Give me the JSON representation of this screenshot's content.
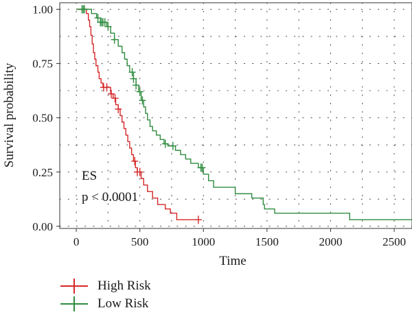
{
  "chart_data": {
    "type": "line",
    "xlabel": "Time",
    "ylabel": "Survival probability",
    "xlim": [
      -130,
      2640
    ],
    "ylim": [
      -0.01,
      1.03
    ],
    "xticks": [
      0,
      500,
      1000,
      1500,
      2000,
      2500
    ],
    "xtick_labels": [
      "0",
      "500",
      "1000",
      "1500",
      "2000",
      "2500"
    ],
    "yticks": [
      0,
      0.25,
      0.5,
      0.75,
      1.0
    ],
    "ytick_labels": [
      "0.00",
      "0.25",
      "0.50",
      "0.75",
      "1.00"
    ],
    "grid": "dotted",
    "annotations": [
      "ES",
      "p < 0.0001"
    ],
    "series": [
      {
        "name": "High Risk",
        "color": "#d62728",
        "steps": [
          [
            0,
            1.0
          ],
          [
            80,
            0.98
          ],
          [
            95,
            0.95
          ],
          [
            105,
            0.92
          ],
          [
            115,
            0.88
          ],
          [
            125,
            0.84
          ],
          [
            135,
            0.8
          ],
          [
            145,
            0.77
          ],
          [
            155,
            0.74
          ],
          [
            170,
            0.71
          ],
          [
            180,
            0.68
          ],
          [
            195,
            0.66
          ],
          [
            210,
            0.64
          ],
          [
            270,
            0.61
          ],
          [
            290,
            0.59
          ],
          [
            310,
            0.56
          ],
          [
            330,
            0.54
          ],
          [
            345,
            0.51
          ],
          [
            360,
            0.48
          ],
          [
            375,
            0.45
          ],
          [
            390,
            0.42
          ],
          [
            405,
            0.39
          ],
          [
            420,
            0.36
          ],
          [
            435,
            0.33
          ],
          [
            450,
            0.3
          ],
          [
            465,
            0.27
          ],
          [
            480,
            0.25
          ],
          [
            510,
            0.22
          ],
          [
            530,
            0.19
          ],
          [
            560,
            0.16
          ],
          [
            600,
            0.13
          ],
          [
            640,
            0.1
          ],
          [
            700,
            0.08
          ],
          [
            740,
            0.06
          ],
          [
            790,
            0.03
          ],
          [
            960,
            0.03
          ]
        ],
        "censor_x": [
          215,
          240,
          275,
          305,
          330,
          460,
          480,
          500,
          960
        ]
      },
      {
        "name": "Low Risk",
        "color": "#2e8b3e",
        "steps": [
          [
            0,
            1.0
          ],
          [
            120,
            0.98
          ],
          [
            160,
            0.96
          ],
          [
            190,
            0.94
          ],
          [
            240,
            0.92
          ],
          [
            270,
            0.89
          ],
          [
            300,
            0.86
          ],
          [
            330,
            0.83
          ],
          [
            360,
            0.8
          ],
          [
            380,
            0.77
          ],
          [
            400,
            0.74
          ],
          [
            420,
            0.71
          ],
          [
            450,
            0.68
          ],
          [
            470,
            0.65
          ],
          [
            490,
            0.62
          ],
          [
            510,
            0.58
          ],
          [
            530,
            0.55
          ],
          [
            545,
            0.52
          ],
          [
            560,
            0.49
          ],
          [
            580,
            0.46
          ],
          [
            600,
            0.44
          ],
          [
            630,
            0.42
          ],
          [
            660,
            0.4
          ],
          [
            690,
            0.38
          ],
          [
            720,
            0.37
          ],
          [
            780,
            0.35
          ],
          [
            820,
            0.33
          ],
          [
            860,
            0.31
          ],
          [
            900,
            0.29
          ],
          [
            960,
            0.27
          ],
          [
            1000,
            0.24
          ],
          [
            1040,
            0.21
          ],
          [
            1080,
            0.18
          ],
          [
            1250,
            0.15
          ],
          [
            1380,
            0.13
          ],
          [
            1470,
            0.1
          ],
          [
            1480,
            0.08
          ],
          [
            1560,
            0.06
          ],
          [
            2150,
            0.03
          ],
          [
            2640,
            0.03
          ]
        ],
        "censor_x": [
          45,
          55,
          65,
          170,
          190,
          200,
          210,
          225,
          250,
          300,
          440,
          450,
          470,
          500,
          520,
          700,
          760,
          980,
          990
        ]
      }
    ]
  },
  "legend": {
    "items": [
      {
        "label": "High Risk",
        "color": "#d62728"
      },
      {
        "label": "Low Risk",
        "color": "#2e8b3e"
      }
    ]
  }
}
